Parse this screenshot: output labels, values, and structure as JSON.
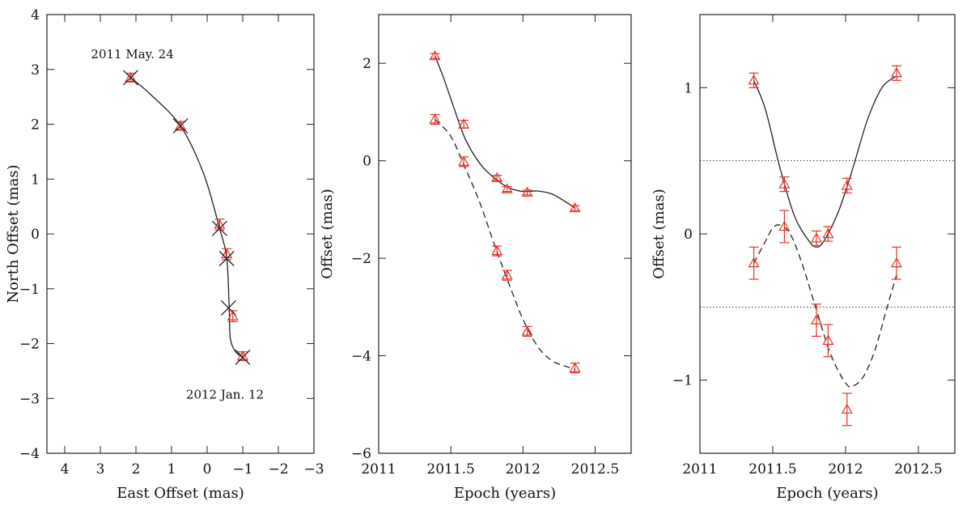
{
  "chart_data": [
    {
      "type": "scatter",
      "xlabel": "East Offset (mas)",
      "ylabel": "North Offset (mas)",
      "xlim": [
        4.5,
        -3
      ],
      "ylim": [
        -4,
        4
      ],
      "x_inverted": true,
      "xticks": [
        4,
        3,
        2,
        1,
        0,
        -1,
        -2,
        -3
      ],
      "xtick_labels": [
        "4",
        "3",
        "2",
        "1",
        "0",
        "−1",
        "−2",
        "−3"
      ],
      "yticks": [
        -4,
        -3,
        -2,
        -1,
        0,
        1,
        2,
        3,
        4
      ],
      "ytick_labels": [
        "−4",
        "−3",
        "−2",
        "−1",
        "0",
        "1",
        "2",
        "3",
        "4"
      ],
      "annotations": [
        {
          "text": "2011 May. 24",
          "x": 2.1,
          "y": 3.2
        },
        {
          "text": "2012 Jan. 12",
          "x": -0.5,
          "y": -3.0
        }
      ],
      "series": [
        {
          "marker": "triangle",
          "color": "#e8332a",
          "points": [
            {
              "x": 2.15,
              "y": 2.85,
              "err": 0.08
            },
            {
              "x": 0.75,
              "y": 1.97,
              "err": 0.08
            },
            {
              "x": -0.35,
              "y": 0.17,
              "err": 0.1
            },
            {
              "x": -0.55,
              "y": -0.37,
              "err": 0.1
            },
            {
              "x": -0.72,
              "y": -1.5,
              "err": 0.1
            },
            {
              "x": -1.0,
              "y": -2.23,
              "err": 0.08
            }
          ]
        },
        {
          "marker": "cross",
          "color": "#222222",
          "points": [
            {
              "x": 2.15,
              "y": 2.85
            },
            {
              "x": 0.75,
              "y": 1.97
            },
            {
              "x": -0.35,
              "y": 0.1
            },
            {
              "x": -0.55,
              "y": -0.45
            },
            {
              "x": -0.6,
              "y": -1.35
            },
            {
              "x": -1.0,
              "y": -2.25
            }
          ]
        },
        {
          "style": "solid-curve",
          "color": "#222222",
          "points": [
            {
              "x": 2.15,
              "y": 2.85
            },
            {
              "x": 1.6,
              "y": 2.55
            },
            {
              "x": 0.75,
              "y": 1.97
            },
            {
              "x": 0.1,
              "y": 1.1
            },
            {
              "x": -0.35,
              "y": 0.1
            },
            {
              "x": -0.55,
              "y": -0.45
            },
            {
              "x": -0.62,
              "y": -1.35
            },
            {
              "x": -0.65,
              "y": -1.9
            },
            {
              "x": -0.8,
              "y": -2.15
            },
            {
              "x": -1.0,
              "y": -2.25
            }
          ]
        }
      ]
    },
    {
      "type": "line",
      "xlabel": "Epoch (years)",
      "ylabel": "Offset (mas)",
      "xlim": [
        2011,
        2012.75
      ],
      "ylim": [
        -6,
        3
      ],
      "xticks": [
        2011,
        2011.5,
        2012,
        2012.5
      ],
      "xtick_labels": [
        "2011",
        "2011.5",
        "2012",
        "2012.5"
      ],
      "yticks": [
        -6,
        -4,
        -2,
        0,
        2
      ],
      "ytick_labels": [
        "−6",
        "−4",
        "−2",
        "0",
        "2"
      ],
      "series": [
        {
          "marker": "triangle",
          "color": "#e8332a",
          "points": [
            {
              "x": 2011.39,
              "y": 2.15,
              "err": 0.05
            },
            {
              "x": 2011.59,
              "y": 0.75,
              "err": 0.08
            },
            {
              "x": 2011.82,
              "y": -0.35,
              "err": 0.05
            },
            {
              "x": 2011.89,
              "y": -0.58,
              "err": 0.05
            },
            {
              "x": 2012.03,
              "y": -0.65,
              "err": 0.05
            },
            {
              "x": 2012.36,
              "y": -0.97,
              "err": 0.05
            }
          ]
        },
        {
          "marker": "triangle",
          "color": "#e8332a",
          "points": [
            {
              "x": 2011.39,
              "y": 0.85,
              "err": 0.1
            },
            {
              "x": 2011.59,
              "y": -0.02,
              "err": 0.1
            },
            {
              "x": 2011.82,
              "y": -1.85,
              "err": 0.1
            },
            {
              "x": 2011.89,
              "y": -2.35,
              "err": 0.1
            },
            {
              "x": 2012.03,
              "y": -3.5,
              "err": 0.1
            },
            {
              "x": 2012.36,
              "y": -4.25,
              "err": 0.1
            }
          ]
        },
        {
          "style": "solid-curve",
          "color": "#222222",
          "points": [
            {
              "x": 2011.39,
              "y": 2.15
            },
            {
              "x": 2011.45,
              "y": 1.7
            },
            {
              "x": 2011.52,
              "y": 1.1
            },
            {
              "x": 2011.6,
              "y": 0.45
            },
            {
              "x": 2011.7,
              "y": -0.05
            },
            {
              "x": 2011.8,
              "y": -0.35
            },
            {
              "x": 2011.9,
              "y": -0.55
            },
            {
              "x": 2012.0,
              "y": -0.63
            },
            {
              "x": 2012.1,
              "y": -0.62
            },
            {
              "x": 2012.2,
              "y": -0.68
            },
            {
              "x": 2012.3,
              "y": -0.85
            },
            {
              "x": 2012.36,
              "y": -0.97
            }
          ]
        },
        {
          "style": "dashed-curve",
          "color": "#222222",
          "points": [
            {
              "x": 2011.39,
              "y": 0.85
            },
            {
              "x": 2011.5,
              "y": 0.5
            },
            {
              "x": 2011.6,
              "y": -0.15
            },
            {
              "x": 2011.7,
              "y": -0.85
            },
            {
              "x": 2011.8,
              "y": -1.7
            },
            {
              "x": 2011.9,
              "y": -2.5
            },
            {
              "x": 2012.0,
              "y": -3.25
            },
            {
              "x": 2012.1,
              "y": -3.8
            },
            {
              "x": 2012.2,
              "y": -4.1
            },
            {
              "x": 2012.3,
              "y": -4.22
            },
            {
              "x": 2012.36,
              "y": -4.28
            }
          ]
        }
      ]
    },
    {
      "type": "line",
      "xlabel": "Epoch (years)",
      "ylabel": "Offset (mas)",
      "xlim": [
        2011,
        2012.75
      ],
      "ylim": [
        -1.5,
        1.5
      ],
      "xticks": [
        2011,
        2011.5,
        2012,
        2012.5
      ],
      "xtick_labels": [
        "2011",
        "2011.5",
        "2012",
        "2012.5"
      ],
      "yticks": [
        -1,
        0,
        1
      ],
      "ytick_labels": [
        "−1",
        "0",
        "1"
      ],
      "reference_lines": [
        0.5,
        -0.5
      ],
      "series": [
        {
          "marker": "triangle",
          "color": "#e8332a",
          "points": [
            {
              "x": 2011.37,
              "y": 1.05,
              "err": 0.05
            },
            {
              "x": 2011.58,
              "y": 0.34,
              "err": 0.05
            },
            {
              "x": 2011.8,
              "y": -0.03,
              "err": 0.05
            },
            {
              "x": 2011.88,
              "y": 0.0,
              "err": 0.05
            },
            {
              "x": 2012.01,
              "y": 0.33,
              "err": 0.05
            },
            {
              "x": 2012.35,
              "y": 1.1,
              "err": 0.05
            }
          ]
        },
        {
          "marker": "triangle",
          "color": "#e8332a",
          "points": [
            {
              "x": 2011.37,
              "y": -0.2,
              "err": 0.11
            },
            {
              "x": 2011.58,
              "y": 0.05,
              "err": 0.11
            },
            {
              "x": 2011.8,
              "y": -0.59,
              "err": 0.11
            },
            {
              "x": 2011.88,
              "y": -0.73,
              "err": 0.11
            },
            {
              "x": 2012.01,
              "y": -1.2,
              "err": 0.11
            },
            {
              "x": 2012.35,
              "y": -0.2,
              "err": 0.11
            }
          ]
        },
        {
          "style": "solid-curve",
          "color": "#222222",
          "points": [
            {
              "x": 2011.37,
              "y": 1.05
            },
            {
              "x": 2011.45,
              "y": 0.85
            },
            {
              "x": 2011.55,
              "y": 0.45
            },
            {
              "x": 2011.65,
              "y": 0.12
            },
            {
              "x": 2011.75,
              "y": -0.05
            },
            {
              "x": 2011.8,
              "y": -0.09
            },
            {
              "x": 2011.85,
              "y": -0.05
            },
            {
              "x": 2011.95,
              "y": 0.15
            },
            {
              "x": 2012.05,
              "y": 0.45
            },
            {
              "x": 2012.15,
              "y": 0.78
            },
            {
              "x": 2012.25,
              "y": 1.0
            },
            {
              "x": 2012.35,
              "y": 1.08
            }
          ]
        },
        {
          "style": "dashed-curve",
          "color": "#222222",
          "points": [
            {
              "x": 2011.37,
              "y": -0.2
            },
            {
              "x": 2011.45,
              "y": -0.05
            },
            {
              "x": 2011.5,
              "y": 0.04
            },
            {
              "x": 2011.55,
              "y": 0.06
            },
            {
              "x": 2011.62,
              "y": 0.0
            },
            {
              "x": 2011.7,
              "y": -0.2
            },
            {
              "x": 2011.8,
              "y": -0.52
            },
            {
              "x": 2011.9,
              "y": -0.83
            },
            {
              "x": 2012.0,
              "y": -1.02
            },
            {
              "x": 2012.05,
              "y": -1.04
            },
            {
              "x": 2012.12,
              "y": -0.98
            },
            {
              "x": 2012.2,
              "y": -0.8
            },
            {
              "x": 2012.28,
              "y": -0.52
            },
            {
              "x": 2012.35,
              "y": -0.28
            }
          ]
        }
      ]
    }
  ]
}
